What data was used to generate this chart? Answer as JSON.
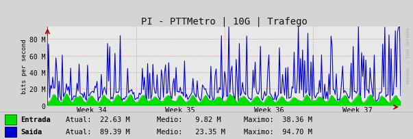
{
  "title": "PI - PTTMetro | 10G | Trafego",
  "ylabel": "bits per second",
  "yticks": [
    0,
    20000000,
    40000000,
    60000000,
    80000000
  ],
  "ytick_labels": [
    "0",
    "20 M",
    "40 M",
    "60 M",
    "80 M"
  ],
  "ylim": [
    0,
    95000000
  ],
  "week_labels": [
    "Week 34",
    "Week 35",
    "Week 36",
    "Week 37"
  ],
  "fig_bg_color": "#d4d4d4",
  "plot_bg_color": "#e8e8e8",
  "grid_color": "#dd6666",
  "entrada_fill": "#00dd00",
  "entrada_line": "#009900",
  "saida_color": "#0000cc",
  "legend_entrada": "Entrada",
  "legend_saida": "Saida",
  "legend_entrada_atual": "22.63 M",
  "legend_entrada_medio": "9.82 M",
  "legend_entrada_maximo": "38.36 M",
  "legend_saida_atual": "89.39 M",
  "legend_saida_medio": "23.35 M",
  "legend_saida_maximo": "94.70 M",
  "n_points": 336,
  "watermark": "RRDTOOL / TOBI OETIKER"
}
